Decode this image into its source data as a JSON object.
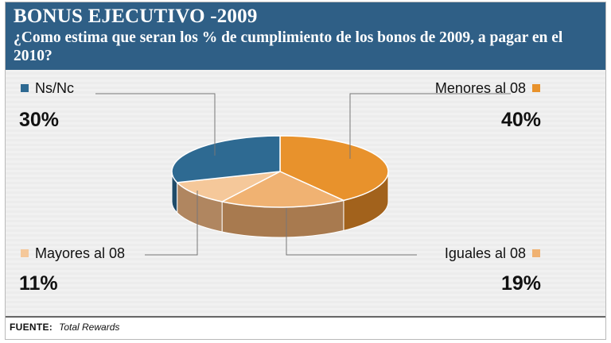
{
  "header": {
    "title": "BONUS EJECUTIVO -2009",
    "subtitle": "¿Como estima que seran los % de cumplimiento de los bonos de 2009, a pagar en el 2010?"
  },
  "chart_data": {
    "type": "pie",
    "title": "BONUS EJECUTIVO -2009",
    "subtitle": "¿Como estima que seran los % de cumplimiento de los bonos de 2009, a pagar en el 2010?",
    "slices": [
      {
        "label": "Ns/Nc",
        "value": 30,
        "display": "30%",
        "color": "#2e6a92",
        "side_color": "#1f4b69"
      },
      {
        "label": "Menores al 08",
        "value": 40,
        "display": "40%",
        "color": "#e8922c",
        "side_color": "#a2621c"
      },
      {
        "label": "Iguales al 08",
        "value": 19,
        "display": "19%",
        "color": "#f0b272",
        "side_color": "#a87a4f"
      },
      {
        "label": "Mayores al 08",
        "value": 11,
        "display": "11%",
        "color": "#f5c89a",
        "side_color": "#b08660"
      }
    ],
    "style": "3d-pie"
  },
  "footer": {
    "source_label": "FUENTE:",
    "source_value": "Total Rewards"
  }
}
